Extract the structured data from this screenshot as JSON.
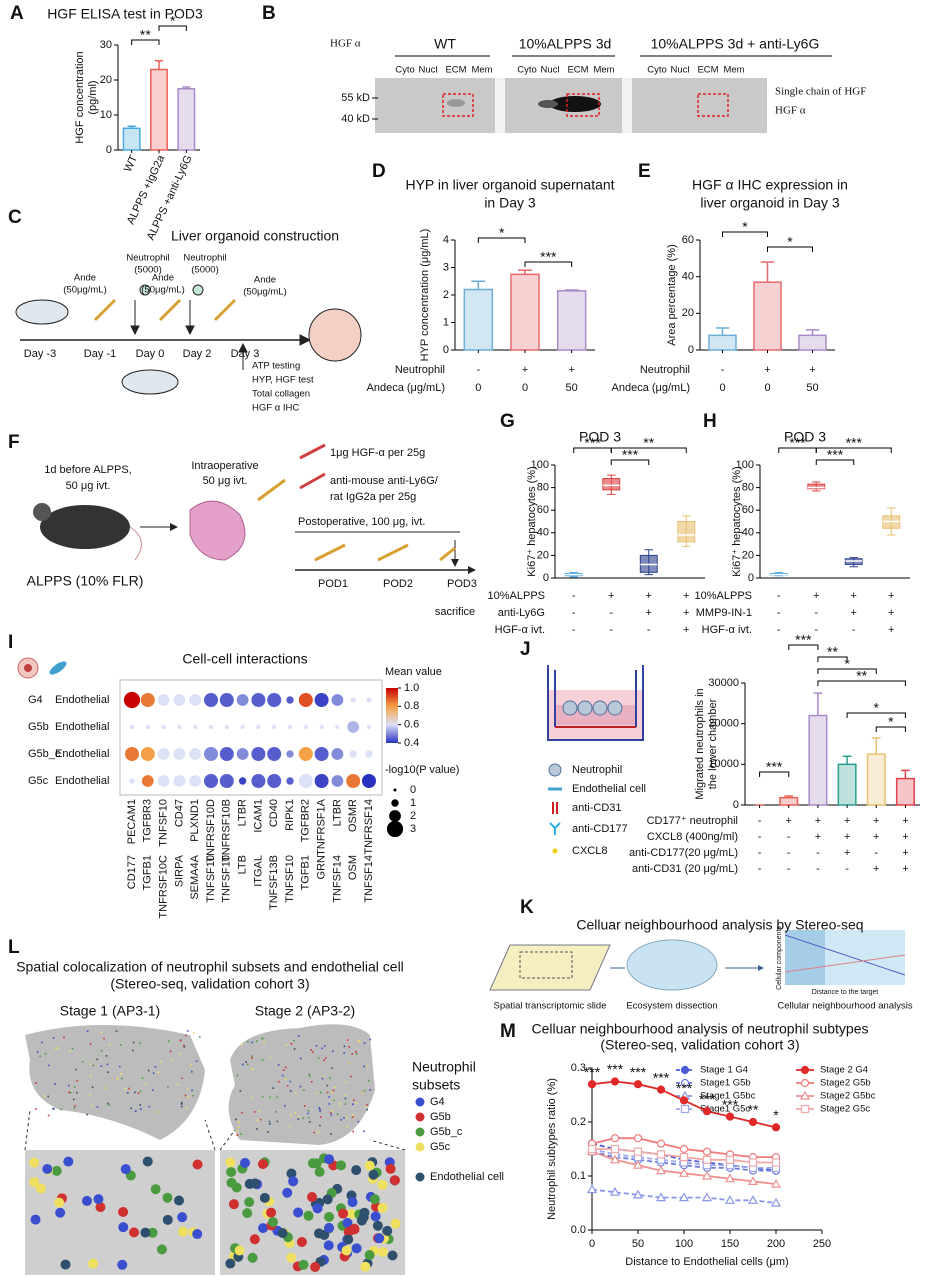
{
  "figure": {
    "panel_b": {
      "label": "B",
      "protein": "HGF α",
      "groups": [
        "WT",
        "10%ALPPS 3d",
        "10%ALPPS 3d + anti-Ly6G"
      ],
      "lanes": [
        "Cyto",
        "Nucl",
        "ECM",
        "Mem"
      ],
      "markers": [
        "55 kD",
        "40 kD"
      ],
      "bands": [
        "Single chain of HGF",
        "HGF α"
      ]
    },
    "panel_c": {
      "label": "C",
      "title": "Liver organoid construction",
      "days": [
        "Day -3",
        "Day -1",
        "Day 0",
        "Day 2",
        "Day 3"
      ],
      "treatments": [
        [
          "Ande",
          "(50μg/mL)"
        ],
        [
          "Neutrophil",
          "(5000)"
        ],
        [
          "Ande",
          "(50μg/mL)"
        ],
        [
          "Neutrophil",
          "(5000)"
        ],
        [
          "Ande",
          "(50μg/mL)"
        ]
      ],
      "tests": [
        "ATP testing",
        "HYP, HGF test",
        "Total collagen",
        "HGF α  IHC"
      ]
    },
    "panel_f": {
      "label": "F",
      "pre": [
        "1d before ALPPS,",
        "50 μg ivt."
      ],
      "intra": [
        "Intraoperative",
        "50 μg ivt."
      ],
      "drugs": [
        "1μg HGF-α per 25g",
        "anti-mouse anti-Ly6G/",
        "rat IgG2a per 25g"
      ],
      "post": "Postoperative, 100 μg, ivt.",
      "days": [
        "POD1",
        "POD2",
        "POD3"
      ],
      "model": "ALPPS (10% FLR)",
      "end": "sacrifice"
    },
    "panel_j": {
      "legend": [
        "Neutrophil",
        "Endothelial cell",
        "anti-CD31",
        "anti-CD177",
        "CXCL8"
      ]
    },
    "panel_k": {
      "label": "K",
      "title": "Celluar neighbourhood analysis by Stereo-seq",
      "steps": [
        "Spatial transcriptomic slide",
        "Ecosystem dissection",
        "Cellular neighbourhood analysis"
      ],
      "x_axis": "Distance to the target",
      "y_axis": "Cellular components"
    },
    "panel_l": {
      "label": "L",
      "title": [
        "Spatial colocalization of neutrophil subsets and endothelial cell",
        "(Stereo-seq, validation cohort 3)"
      ],
      "stages": [
        "Stage 1 (AP3-1)",
        "Stage 2 (AP3-2)"
      ],
      "legend_title": [
        "Neutrophil",
        "subsets"
      ],
      "subsets": [
        {
          "name": "G4",
          "color": "#3a4fd0"
        },
        {
          "name": "G5b",
          "color": "#d03030"
        },
        {
          "name": "G5b_c",
          "color": "#4a9a40"
        },
        {
          "name": "G5c",
          "color": "#f0e060"
        }
      ],
      "endothelial": {
        "name": "Endothelial cell",
        "color": "#2f4f6f"
      }
    }
  },
  "chart_data": [
    {
      "label": "A",
      "type": "bar",
      "title": "HGF ELISA test in POD3",
      "ylabel": [
        "HGF concentration",
        "(pg/ml)"
      ],
      "categories": [
        "WT",
        "ALPPS +IgG2a",
        "ALPPS +anti-Ly6G"
      ],
      "values": [
        6.2,
        23,
        17.5
      ],
      "errors": [
        0.6,
        2.5,
        0.5
      ],
      "colors": [
        "#4aa8e0",
        "#e8605a",
        "#a88cc8"
      ],
      "ylim": [
        0,
        30
      ],
      "yticks": [
        0,
        10,
        20,
        30
      ],
      "significance": [
        "**",
        "*"
      ]
    },
    {
      "label": "D",
      "type": "bar",
      "title": [
        "HYP in liver organoid supernatant",
        "in Day 3"
      ],
      "ylabel": [
        "HYP concentration (μg/mL)"
      ],
      "values": [
        2.2,
        2.75,
        2.15
      ],
      "errors": [
        0.3,
        0.15,
        0.03
      ],
      "colors": [
        "#6baed6",
        "#e8696b",
        "#a88cc8"
      ],
      "ylim": [
        0,
        4
      ],
      "yticks": [
        0,
        1,
        2,
        3,
        4
      ],
      "conditions": [
        {
          "label": "Neutrophil",
          "marks": [
            "-",
            "+",
            "+"
          ]
        },
        {
          "label": "Andeca (μg/mL)",
          "marks": [
            "0",
            "0",
            "50"
          ]
        }
      ],
      "significance": [
        "*",
        "***"
      ]
    },
    {
      "label": "E",
      "type": "bar",
      "title": [
        "HGF α  IHC expression in",
        "liver organoid in Day 3"
      ],
      "ylabel": [
        "Area percentage (%)"
      ],
      "values": [
        8,
        37,
        8
      ],
      "errors": [
        4,
        11,
        3
      ],
      "colors": [
        "#6baed6",
        "#e8696b",
        "#a88cc8"
      ],
      "ylim": [
        0,
        60
      ],
      "yticks": [
        0,
        20,
        40,
        60
      ],
      "conditions": [
        {
          "label": "Neutrophil",
          "marks": [
            "-",
            "+",
            "+"
          ]
        },
        {
          "label": "Andeca (μg/mL)",
          "marks": [
            "0",
            "0",
            "50"
          ]
        }
      ],
      "significance": [
        "*",
        "*"
      ]
    },
    {
      "label": "G",
      "type": "box",
      "title": "POD 3",
      "ylabel": [
        "Ki67⁺ hepatocytes (%)"
      ],
      "boxes": [
        {
          "min": 1,
          "q1": 2,
          "median": 3,
          "q3": 4,
          "max": 5
        },
        {
          "min": 74,
          "q1": 78,
          "median": 82,
          "q3": 88,
          "max": 91
        },
        {
          "min": 3,
          "q1": 5,
          "median": 12,
          "q3": 20,
          "max": 25
        },
        {
          "min": 28,
          "q1": 32,
          "median": 38,
          "q3": 50,
          "max": 55
        }
      ],
      "colors": [
        "#4aa8e0",
        "#e04040",
        "#2b3f8f",
        "#e8c070"
      ],
      "ylim": [
        0,
        100
      ],
      "yticks": [
        0,
        20,
        40,
        60,
        80,
        100
      ],
      "conditions": [
        {
          "label": "10%ALPPS",
          "marks": [
            "-",
            "+",
            "+",
            "+"
          ]
        },
        {
          "label": "anti-Ly6G",
          "marks": [
            "-",
            "-",
            "+",
            "+"
          ]
        },
        {
          "label": "HGF-α ivt.",
          "marks": [
            "-",
            "-",
            "-",
            "+"
          ]
        }
      ],
      "significance": [
        "***",
        "***",
        "**"
      ]
    },
    {
      "label": "H",
      "type": "box",
      "title": "POD 3",
      "ylabel": [
        "Ki67⁺ hepatocytes (%)"
      ],
      "boxes": [
        {
          "min": 2,
          "q1": 2.5,
          "median": 3,
          "q3": 4,
          "max": 5
        },
        {
          "min": 77,
          "q1": 79,
          "median": 80,
          "q3": 83,
          "max": 85
        },
        {
          "min": 10,
          "q1": 12,
          "median": 15,
          "q3": 17,
          "max": 18
        },
        {
          "min": 38,
          "q1": 44,
          "median": 50,
          "q3": 55,
          "max": 62
        }
      ],
      "colors": [
        "#4aa8e0",
        "#e04040",
        "#2b3f8f",
        "#e8c070"
      ],
      "ylim": [
        0,
        100
      ],
      "yticks": [
        0,
        20,
        40,
        60,
        80,
        100
      ],
      "conditions": [
        {
          "label": "10%ALPPS",
          "marks": [
            "-",
            "+",
            "+",
            "+"
          ]
        },
        {
          "label": "MMP9-IN-1",
          "marks": [
            "-",
            "-",
            "+",
            "+"
          ]
        },
        {
          "label": "HGF-α ivt.",
          "marks": [
            "-",
            "-",
            "-",
            "+"
          ]
        }
      ],
      "significance": [
        "***",
        "***",
        "***"
      ]
    },
    {
      "label": "I",
      "type": "dot",
      "title": "Cell-cell interactions",
      "rows": [
        "G4",
        "G5b",
        "G5b_c",
        "G5c"
      ],
      "row_suffix": "Endothelial",
      "receptors": [
        "PECAM1",
        "TGFBR3",
        "TNFSF10",
        "CD47",
        "PLXND1",
        "TNFRSF10D",
        "TNFRSF10B",
        "LTBR",
        "ICAM1",
        "CD40",
        "RIPK1",
        "TGFBR2",
        "TNFRSF1A",
        "LTBR",
        "OSMR",
        "TNFRSF14"
      ],
      "ligands": [
        "CD177",
        "TGFB1",
        "TNFRSF10C",
        "SIRPA",
        "SEMA4A",
        "TNFSF10",
        "TNFSF10",
        "LTB",
        "ITGAL",
        "TNFSF13B",
        "TNFSF10",
        "TGFB1",
        "GRN",
        "TNFSF14",
        "OSM",
        "TNFSF14"
      ],
      "mean": [
        [
          1.0,
          0.85,
          0.6,
          0.6,
          0.6,
          0.45,
          0.45,
          0.5,
          0.45,
          0.45,
          0.45,
          0.9,
          0.42,
          0.5,
          0.6,
          0.6
        ],
        [
          0.6,
          0.6,
          0.6,
          0.6,
          0.6,
          0.6,
          0.6,
          0.6,
          0.6,
          0.6,
          0.6,
          0.6,
          0.6,
          0.6,
          0.55,
          0.6
        ],
        [
          0.85,
          0.8,
          0.6,
          0.6,
          0.6,
          0.5,
          0.45,
          0.5,
          0.45,
          0.45,
          0.5,
          0.8,
          0.45,
          0.5,
          0.6,
          0.6
        ],
        [
          0.6,
          0.85,
          0.6,
          0.6,
          0.6,
          0.45,
          0.45,
          0.42,
          0.45,
          0.45,
          0.45,
          0.6,
          0.42,
          0.5,
          0.85,
          0.4
        ]
      ],
      "neglog10p": [
        [
          3,
          2.5,
          2,
          2,
          2,
          2.5,
          2.5,
          2,
          2.5,
          2.5,
          1,
          2.5,
          2.5,
          2,
          0.5,
          0.5
        ],
        [
          0.3,
          0.3,
          0.3,
          0.3,
          0.3,
          0.3,
          0.3,
          0.3,
          0.3,
          0.3,
          0.3,
          0.3,
          0.3,
          0.3,
          2,
          0.3
        ],
        [
          2.5,
          2.5,
          2,
          2,
          2,
          2.5,
          2.5,
          2,
          2.5,
          2.5,
          1,
          2.5,
          2.5,
          2,
          1,
          1
        ],
        [
          0.5,
          2,
          2,
          2,
          2,
          2.5,
          2.5,
          1,
          2.5,
          2.5,
          1,
          2.5,
          2.5,
          2,
          2.5,
          2.5
        ]
      ],
      "color_title": "Mean value",
      "color_ticks": [
        0.4,
        0.6,
        0.8,
        {
          "value": 1.0,
          "label": "1.0"
        }
      ],
      "size_title": "-log10(P value)",
      "size_ticks": [
        0,
        1,
        2,
        3
      ]
    },
    {
      "label": "J",
      "type": "bar",
      "ylabel": [
        "Migrated neutrophils in",
        "the lower chamber"
      ],
      "values": [
        0,
        1800,
        22000,
        10000,
        12500,
        6500
      ],
      "errors": [
        0,
        400,
        5500,
        2000,
        4000,
        2000
      ],
      "colors": [
        "#e8605a",
        "#e8605a",
        "#a88cc8",
        "#2a9d8f",
        "#e8c070",
        "#e0404a"
      ],
      "ylim": [
        0,
        30000
      ],
      "yticks": [
        0,
        10000,
        20000,
        30000
      ],
      "conditions": [
        {
          "label": "CD177⁺ neutrophil",
          "marks": [
            "-",
            "+",
            "+",
            "+",
            "+",
            "+"
          ]
        },
        {
          "label": "CXCL8 (400ng/ml)",
          "marks": [
            "-",
            "-",
            "+",
            "+",
            "+",
            "+"
          ]
        },
        {
          "label": "anti-CD177(20 μg/mL)",
          "marks": [
            "-",
            "-",
            "-",
            "+",
            "-",
            "+"
          ]
        },
        {
          "label": "anti-CD31 (20 μg/mL)",
          "marks": [
            "-",
            "-",
            "-",
            "-",
            "+",
            "+"
          ]
        }
      ],
      "significance": [
        "***",
        "**",
        "*",
        "**",
        "*",
        "*",
        "***"
      ]
    },
    {
      "label": "M",
      "type": "line",
      "title": "Celluar neighbourhood analysis of neutrophil subtypes",
      "subtitle": "(Stereo-seq, validation cohort 3)",
      "xlabel": "Distance to Endothelial cells (μm)",
      "ylabel": "Neutrophil subtypes ratio (%)",
      "x": [
        0,
        25,
        50,
        75,
        100,
        125,
        150,
        175,
        200
      ],
      "series": [
        {
          "name": "Stage 1 G4",
          "color": "#4a5ad8",
          "dashed": true,
          "marker": "circle",
          "values": [
            0.16,
            0.15,
            0.145,
            0.14,
            0.13,
            0.125,
            0.12,
            0.115,
            0.11
          ]
        },
        {
          "name": "Stage1 G5b",
          "color": "#6d7be0",
          "dashed": true,
          "marker": "open-circle",
          "values": [
            0.145,
            0.135,
            0.13,
            0.125,
            0.12,
            0.115,
            0.115,
            0.11,
            0.11
          ]
        },
        {
          "name": "Stage1 G5bc",
          "color": "#8b96e8",
          "dashed": true,
          "marker": "triangle",
          "values": [
            0.075,
            0.07,
            0.065,
            0.06,
            0.06,
            0.06,
            0.055,
            0.055,
            0.05
          ]
        },
        {
          "name": "Stage1 G5c",
          "color": "#9ea7ee",
          "dashed": true,
          "marker": "square",
          "values": [
            0.15,
            0.14,
            0.135,
            0.13,
            0.125,
            0.12,
            0.12,
            0.115,
            0.115
          ]
        },
        {
          "name": "Stage 2 G4",
          "color": "#e02828",
          "dashed": false,
          "marker": "circle",
          "values": [
            0.27,
            0.275,
            0.27,
            0.26,
            0.24,
            0.22,
            0.21,
            0.2,
            0.19
          ]
        },
        {
          "name": "Stage2 G5b",
          "color": "#ee7a7a",
          "dashed": false,
          "marker": "open-circle",
          "values": [
            0.16,
            0.17,
            0.17,
            0.16,
            0.15,
            0.145,
            0.14,
            0.135,
            0.135
          ]
        },
        {
          "name": "Stage2 G5bc",
          "color": "#f09090",
          "dashed": false,
          "marker": "triangle",
          "values": [
            0.145,
            0.13,
            0.12,
            0.11,
            0.105,
            0.1,
            0.095,
            0.09,
            0.085
          ]
        },
        {
          "name": "Stage2 G5c",
          "color": "#f0a8a8",
          "dashed": false,
          "marker": "square",
          "values": [
            0.15,
            0.15,
            0.145,
            0.14,
            0.135,
            0.13,
            0.13,
            0.125,
            0.125
          ]
        }
      ],
      "xlim": [
        0,
        250
      ],
      "xticks": [
        0,
        50,
        100,
        150,
        200,
        250
      ],
      "ylim": [
        0,
        0.3
      ],
      "yticks": [
        {
          "value": 0,
          "label": "0.0"
        },
        0.1,
        0.2,
        0.3
      ],
      "significance": [
        "***",
        "***",
        "***",
        "***",
        "***",
        "***",
        "***",
        "**",
        "*"
      ]
    }
  ]
}
